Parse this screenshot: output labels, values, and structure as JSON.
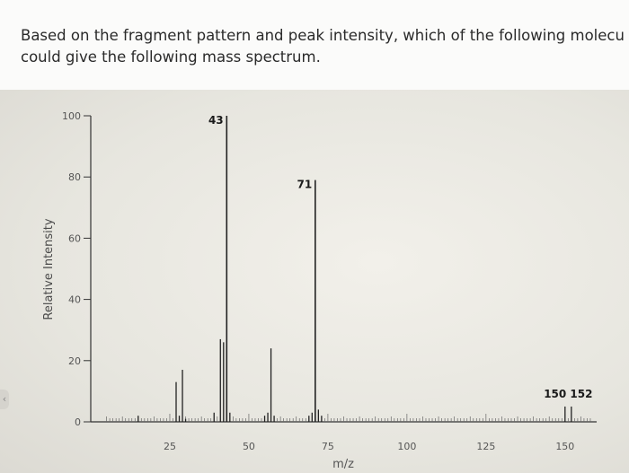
{
  "question": {
    "text": "Based on the fragment pattern and peak intensity, which of the following molecu\ncould give the following mass spectrum."
  },
  "chart_data": {
    "type": "bar",
    "title": "",
    "xlabel": "m/z",
    "ylabel": "Relative Intensity",
    "xlim": [
      0,
      160
    ],
    "ylim": [
      0,
      100
    ],
    "x_ticks": [
      25,
      50,
      75,
      100,
      125,
      150
    ],
    "y_ticks": [
      0,
      20,
      40,
      60,
      80,
      100
    ],
    "grid": false,
    "peaks": [
      {
        "mz": 15,
        "intensity": 2
      },
      {
        "mz": 27,
        "intensity": 13
      },
      {
        "mz": 28,
        "intensity": 2
      },
      {
        "mz": 29,
        "intensity": 17
      },
      {
        "mz": 30,
        "intensity": 1
      },
      {
        "mz": 39,
        "intensity": 3
      },
      {
        "mz": 41,
        "intensity": 27
      },
      {
        "mz": 42,
        "intensity": 26
      },
      {
        "mz": 43,
        "intensity": 100
      },
      {
        "mz": 44,
        "intensity": 3
      },
      {
        "mz": 55,
        "intensity": 2
      },
      {
        "mz": 56,
        "intensity": 3
      },
      {
        "mz": 57,
        "intensity": 24
      },
      {
        "mz": 58,
        "intensity": 2
      },
      {
        "mz": 69,
        "intensity": 2
      },
      {
        "mz": 70,
        "intensity": 3
      },
      {
        "mz": 71,
        "intensity": 79
      },
      {
        "mz": 72,
        "intensity": 4
      },
      {
        "mz": 73,
        "intensity": 2
      },
      {
        "mz": 150,
        "intensity": 5
      },
      {
        "mz": 152,
        "intensity": 5
      }
    ],
    "annotations": [
      {
        "label": "43",
        "mz": 43
      },
      {
        "label": "71",
        "mz": 71
      },
      {
        "label": "150 152",
        "mz": 151
      }
    ]
  }
}
